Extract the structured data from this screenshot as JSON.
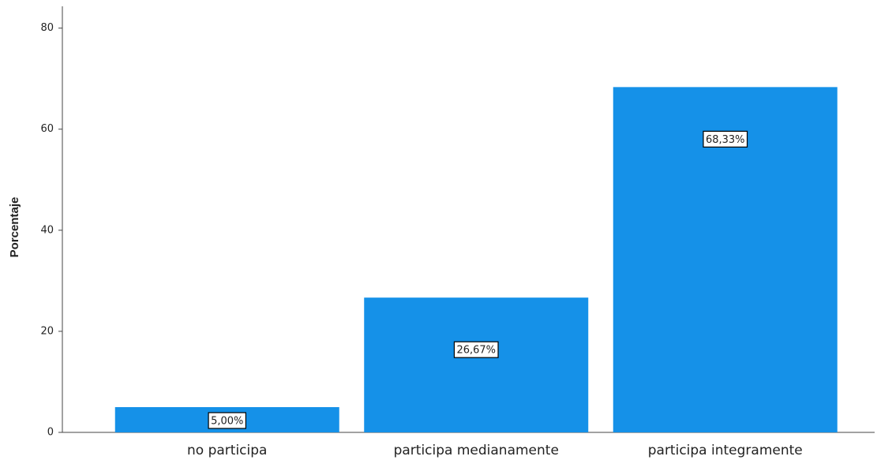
{
  "chart_data": {
    "type": "bar",
    "y_label": "Porcentaje",
    "categories": [
      "no participa",
      "participa medianamente",
      "participa integramente"
    ],
    "values": [
      5.0,
      26.67,
      68.33
    ],
    "value_labels": [
      "5,00%",
      "26,67%",
      "68,33%"
    ],
    "color": "#1591e8",
    "ylim": [
      0,
      84
    ],
    "yticks": [
      0,
      20,
      40,
      60,
      80
    ],
    "grid": false
  }
}
